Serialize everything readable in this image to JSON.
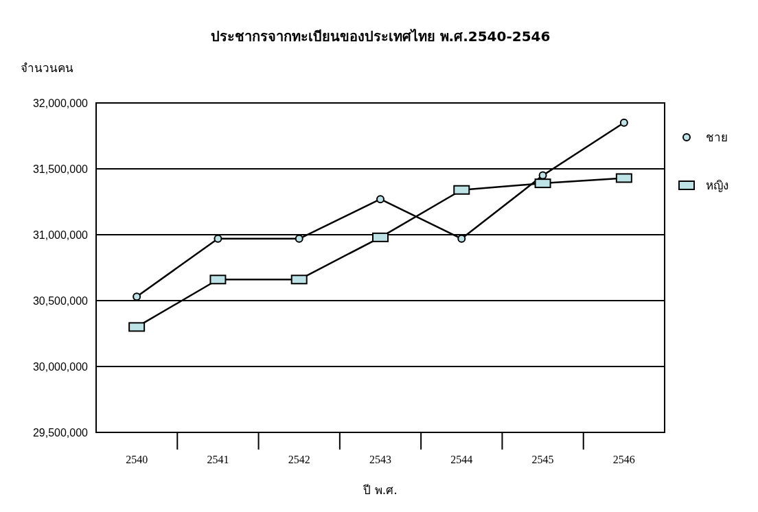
{
  "chart_data": {
    "type": "line",
    "title": "ประชากรจากทะเบียนของประเทศไทย พ.ศ.2540-2546",
    "ylabel": "จำนวนคน",
    "xlabel": "ปี พ.ศ.",
    "categories": [
      "2540",
      "2541",
      "2542",
      "2543",
      "2544",
      "2545",
      "2546"
    ],
    "series": [
      {
        "name": "ชาย",
        "color": "#000000",
        "marker": "circle",
        "values": [
          30530000,
          30970000,
          30970000,
          31270000,
          30970000,
          31450000,
          31850000
        ]
      },
      {
        "name": "หญิง",
        "color": "#000000",
        "marker": "square",
        "values": [
          30300000,
          30660000,
          30660000,
          30980000,
          31340000,
          31390000,
          31430000
        ]
      }
    ],
    "ylim": [
      29500000,
      32000000
    ],
    "yticks": [
      {
        "value": 29500000,
        "label": "29,500,000"
      },
      {
        "value": 30000000,
        "label": "30,000,000"
      },
      {
        "value": 30500000,
        "label": "30,500,000"
      },
      {
        "value": 31000000,
        "label": "31,000,000"
      },
      {
        "value": 31500000,
        "label": "31,500,000"
      },
      {
        "value": 32000000,
        "label": "32,000,000"
      }
    ],
    "grid": "y",
    "legend": "right",
    "line_style": "solid"
  }
}
